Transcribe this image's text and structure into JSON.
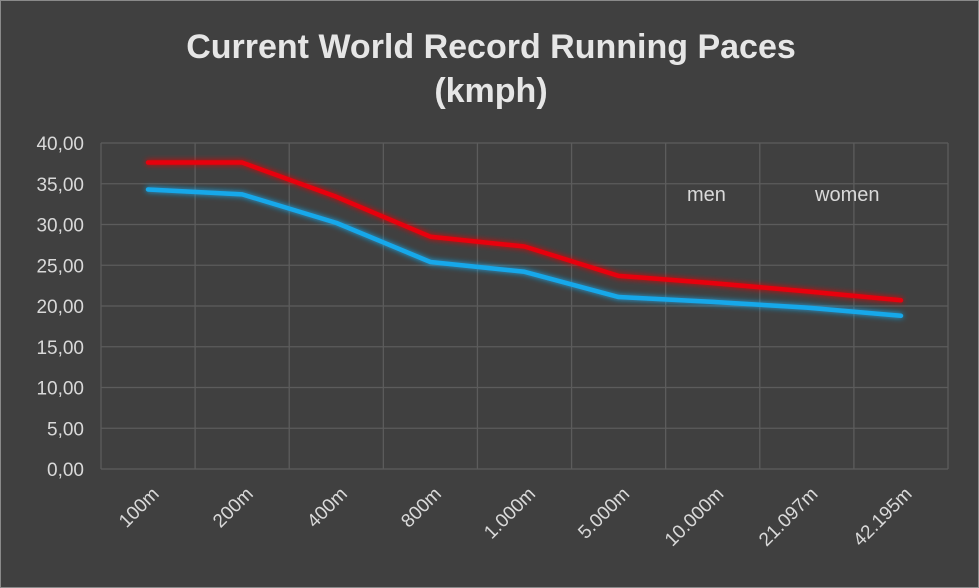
{
  "chart_data": {
    "type": "line",
    "title_lines": [
      "Current World Record Running Paces",
      "(kmph)"
    ],
    "categories": [
      "100m",
      "200m",
      "400m",
      "800m",
      "1.000m",
      "5.000m",
      "10.000m",
      "21.097m",
      "42.195m"
    ],
    "series": [
      {
        "name": "men",
        "color": "#e8000b",
        "values": [
          37.6,
          37.6,
          33.4,
          28.5,
          27.3,
          23.7,
          22.8,
          21.8,
          20.7
        ]
      },
      {
        "name": "women",
        "color": "#18a8ea",
        "values": [
          34.3,
          33.7,
          30.2,
          25.4,
          24.2,
          21.1,
          20.5,
          19.8,
          18.8
        ]
      }
    ],
    "y_ticks": [
      "0,00",
      "5,00",
      "10,00",
      "15,00",
      "20,00",
      "25,00",
      "30,00",
      "35,00",
      "40,00"
    ],
    "ylim": [
      0,
      40
    ],
    "grid": true,
    "legend_position": "top-right"
  }
}
